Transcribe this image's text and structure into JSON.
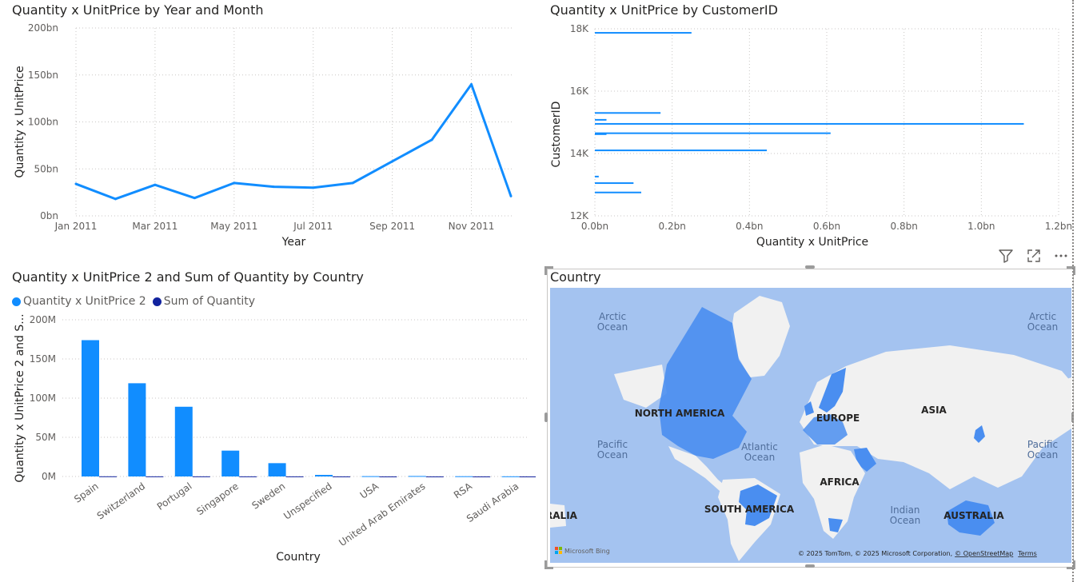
{
  "visuals": {
    "line": {
      "title": "Quantity x UnitPrice by Year and Month"
    },
    "bar_h": {
      "title": "Quantity x UnitPrice by CustomerID"
    },
    "column": {
      "title": "Quantity x UnitPrice 2 and Sum of Quantity by Country"
    },
    "map": {
      "title": "Country"
    }
  },
  "header_icons": [
    "filter-icon",
    "focus-mode-icon",
    "more-options-icon"
  ],
  "map": {
    "labels": {
      "arctic_left": "Arctic\nOcean",
      "arctic_right": "Arctic\nOcean",
      "pacific_left": "Pacific\nOcean",
      "pacific_right": "Pacific\nOcean",
      "atlantic": "Atlantic\nOcean",
      "indian": "Indian\nOcean",
      "north_america": "NORTH AMERICA",
      "south_america": "SOUTH AMERICA",
      "europe": "EUROPE",
      "asia": "ASIA",
      "africa": "AFRICA",
      "australia": "AUSTRALIA",
      "australia_edge": "RALIA"
    },
    "bing_logo": "Microsoft Bing",
    "attribution": "© 2025 TomTom, © 2025 Microsoft Corporation,",
    "osm_link": "© OpenStreetMap",
    "terms_link": "Terms",
    "colors": {
      "water": "#a4c3f0",
      "land": "#f1f1f1",
      "highlight": "#4a8ef0"
    }
  },
  "chart_data": [
    {
      "type": "line",
      "title": "Quantity x UnitPrice by Year and Month",
      "xlabel": "Year",
      "ylabel": "Quantity x UnitPrice",
      "x": [
        "2011-01",
        "2011-02",
        "2011-03",
        "2011-04",
        "2011-05",
        "2011-06",
        "2011-07",
        "2011-08",
        "2011-09",
        "2011-10",
        "2011-11",
        "2011-12"
      ],
      "x_tick_labels": [
        "Jan 2011",
        "Mar 2011",
        "May 2011",
        "Jul 2011",
        "Sep 2011",
        "Nov 2011"
      ],
      "y_tick_labels": [
        "0bn",
        "50bn",
        "100bn",
        "150bn",
        "200bn"
      ],
      "ylim": [
        0,
        200
      ],
      "unit": "bn",
      "series": [
        {
          "values": [
            34,
            18,
            33,
            19,
            35,
            31,
            30,
            35,
            58,
            81,
            140,
            21
          ],
          "color": "#118dff"
        }
      ],
      "grid": true
    },
    {
      "type": "bar",
      "orientation": "horizontal",
      "title": "Quantity x UnitPrice by CustomerID",
      "xlabel": "Quantity x UnitPrice",
      "ylabel": "CustomerID",
      "x_tick_labels": [
        "0.0bn",
        "0.2bn",
        "0.4bn",
        "0.6bn",
        "0.8bn",
        "1.0bn",
        "1.2bn"
      ],
      "y_tick_labels": [
        "12K",
        "14K",
        "16K",
        "18K"
      ],
      "xlim": [
        0,
        1.2
      ],
      "ylim": [
        12000,
        18000
      ],
      "series": [
        {
          "color": "#118dff",
          "points": [
            {
              "y": 17870,
              "x": 0.25
            },
            {
              "y": 15300,
              "x": 0.17
            },
            {
              "y": 15080,
              "x": 0.03
            },
            {
              "y": 14950,
              "x": 1.11
            },
            {
              "y": 14650,
              "x": 0.61
            },
            {
              "y": 14620,
              "x": 0.03
            },
            {
              "y": 14100,
              "x": 0.445
            },
            {
              "y": 13260,
              "x": 0.01
            },
            {
              "y": 13050,
              "x": 0.1
            },
            {
              "y": 12750,
              "x": 0.12
            }
          ]
        }
      ],
      "grid": true
    },
    {
      "type": "bar",
      "title": "Quantity x UnitPrice 2 and Sum of Quantity by Country",
      "xlabel": "Country",
      "ylabel": "Quantity x UnitPrice 2 and S...",
      "categories": [
        "Spain",
        "Switzerland",
        "Portugal",
        "Singapore",
        "Sweden",
        "Unspecified",
        "USA",
        "United Arab Emirates",
        "RSA",
        "Saudi Arabia"
      ],
      "y_tick_labels": [
        "0M",
        "50M",
        "100M",
        "150M",
        "200M"
      ],
      "ylim": [
        0,
        200
      ],
      "unit": "M",
      "series": [
        {
          "name": "Quantity x UnitPrice 2",
          "color": "#118dff",
          "values": [
            174,
            119,
            89,
            33,
            17,
            2,
            0.4,
            0.6,
            0.3,
            0.2
          ]
        },
        {
          "name": "Sum of Quantity",
          "color": "#12239e",
          "values": [
            0.2,
            0.15,
            0.15,
            0.12,
            0.1,
            0.05,
            0.02,
            0.03,
            0.02,
            0.01
          ]
        }
      ],
      "legend_position": "top-left",
      "grid": true
    }
  ]
}
